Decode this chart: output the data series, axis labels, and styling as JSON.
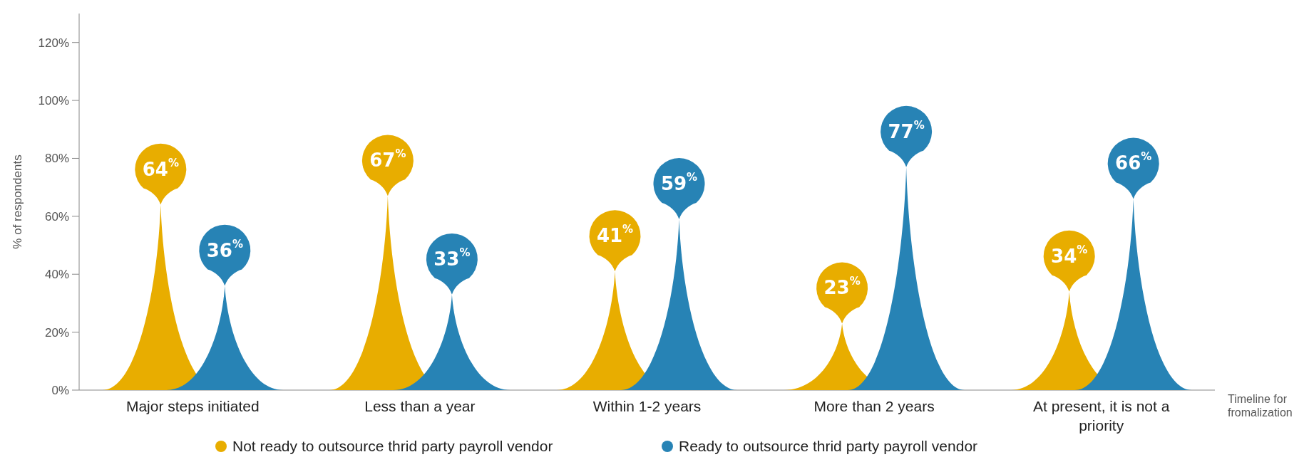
{
  "chart_data": {
    "type": "bar",
    "xlabel": "Timeline for fromalization",
    "ylabel": "% of respondents",
    "categories": [
      "Major steps initiated",
      "Less than a year",
      "Within 1-2 years",
      "More than 2 years",
      "At present, it is not a priority"
    ],
    "series": [
      {
        "name": "Not ready to outsource thrid party payroll vendor",
        "color": "#e8ad00",
        "values": [
          64,
          67,
          41,
          23,
          34
        ],
        "value_labels": [
          "64$^{%}$",
          "67$^{%}$",
          "41$^{%}$",
          "23$^{%}$",
          "34$^{%}$"
        ]
      },
      {
        "name": "Ready to outsource thrid party payroll vendor",
        "color": "#2783b5",
        "values": [
          36,
          33,
          59,
          77,
          66
        ],
        "value_labels": [
          "36$^{%}$",
          "33$^{%}$",
          "59$^{%}$",
          "77$^{%}$",
          "66$^{%}$"
        ]
      }
    ],
    "ylim": [
      0,
      130
    ],
    "yticks": [
      {
        "value": 0,
        "label": "0%"
      },
      {
        "value": 20,
        "label": "20%"
      },
      {
        "value": 40,
        "label": "40%"
      },
      {
        "value": 60,
        "label": "60%"
      },
      {
        "value": 80,
        "label": "80%"
      },
      {
        "value": 100,
        "label": "100%"
      },
      {
        "value": 120,
        "label": "120%"
      }
    ],
    "grid": false,
    "legend": "bottom"
  }
}
